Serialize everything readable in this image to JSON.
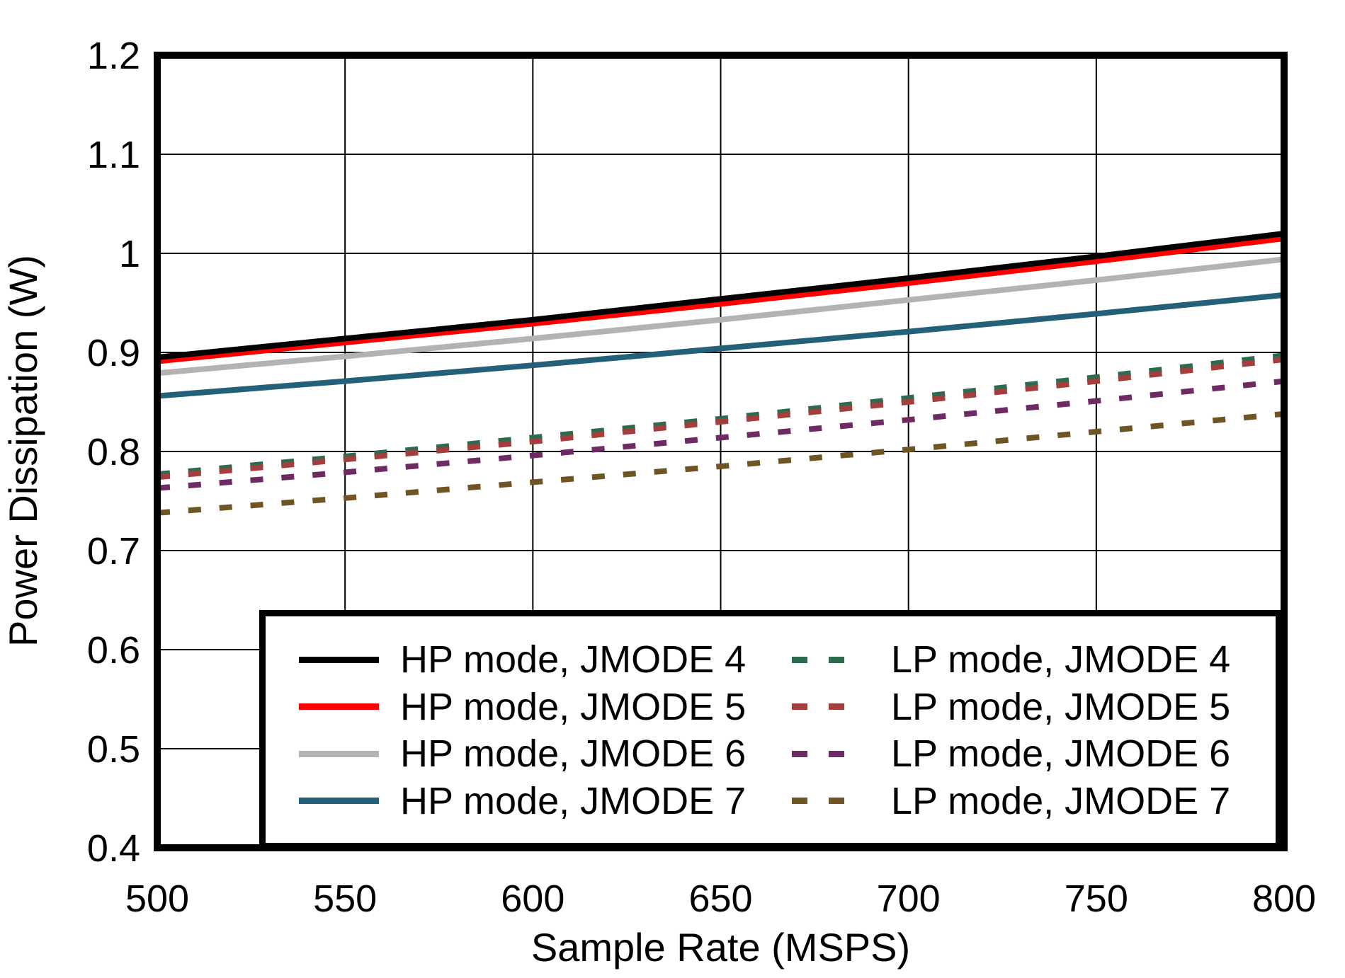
{
  "figure": {
    "background": "#ffffff",
    "frame_color": "#000000",
    "grid_color": "#000000"
  },
  "chart_data": {
    "type": "line",
    "title": "",
    "xlabel": "Sample Rate (MSPS)",
    "ylabel": "Power Dissipation (W)",
    "xlim": [
      500,
      800
    ],
    "ylim": [
      0.4,
      1.2
    ],
    "grid": true,
    "legend_position": "inside lower right",
    "x": [
      500,
      550,
      600,
      650,
      700,
      750,
      800
    ],
    "xticks": {
      "values": [
        500,
        550,
        600,
        650,
        700,
        750,
        800
      ],
      "labels": [
        "500",
        "550",
        "600",
        "650",
        "700",
        "750",
        "800"
      ]
    },
    "yticks": {
      "values": [
        0.4,
        0.5,
        0.6,
        0.7,
        0.8,
        0.9,
        1.0,
        1.1,
        1.2
      ],
      "labels": [
        "0.4",
        "0.5",
        "0.6",
        "0.7",
        "0.8",
        "0.9",
        "1",
        "1.1",
        "1.2"
      ]
    },
    "series": [
      {
        "name": "HP mode, JMODE 4",
        "color": "#000000",
        "style": "solid",
        "values": [
          0.895,
          0.914,
          0.933,
          0.954,
          0.975,
          0.997,
          1.02
        ]
      },
      {
        "name": "HP mode, JMODE 5",
        "color": "#ff0000",
        "style": "solid",
        "values": [
          0.891,
          0.91,
          0.929,
          0.949,
          0.97,
          0.992,
          1.015
        ]
      },
      {
        "name": "HP mode, JMODE 6",
        "color": "#b3b3b3",
        "style": "solid",
        "values": [
          0.879,
          0.896,
          0.914,
          0.933,
          0.953,
          0.973,
          0.994
        ]
      },
      {
        "name": "HP mode, JMODE 7",
        "color": "#25607a",
        "style": "solid",
        "values": [
          0.856,
          0.871,
          0.887,
          0.904,
          0.921,
          0.939,
          0.958
        ]
      },
      {
        "name": "LP mode, JMODE 4",
        "color": "#2d6b4e",
        "style": "dashed",
        "values": [
          0.777,
          0.795,
          0.814,
          0.833,
          0.854,
          0.875,
          0.897
        ]
      },
      {
        "name": "LP mode, JMODE 5",
        "color": "#a43e3c",
        "style": "dashed",
        "values": [
          0.774,
          0.792,
          0.81,
          0.83,
          0.85,
          0.871,
          0.893
        ]
      },
      {
        "name": "LP mode, JMODE 6",
        "color": "#6d2a63",
        "style": "dashed",
        "values": [
          0.763,
          0.779,
          0.796,
          0.814,
          0.832,
          0.851,
          0.871
        ]
      },
      {
        "name": "LP mode, JMODE 7",
        "color": "#6f5523",
        "style": "dashed",
        "values": [
          0.738,
          0.753,
          0.769,
          0.785,
          0.802,
          0.82,
          0.838
        ]
      }
    ]
  }
}
